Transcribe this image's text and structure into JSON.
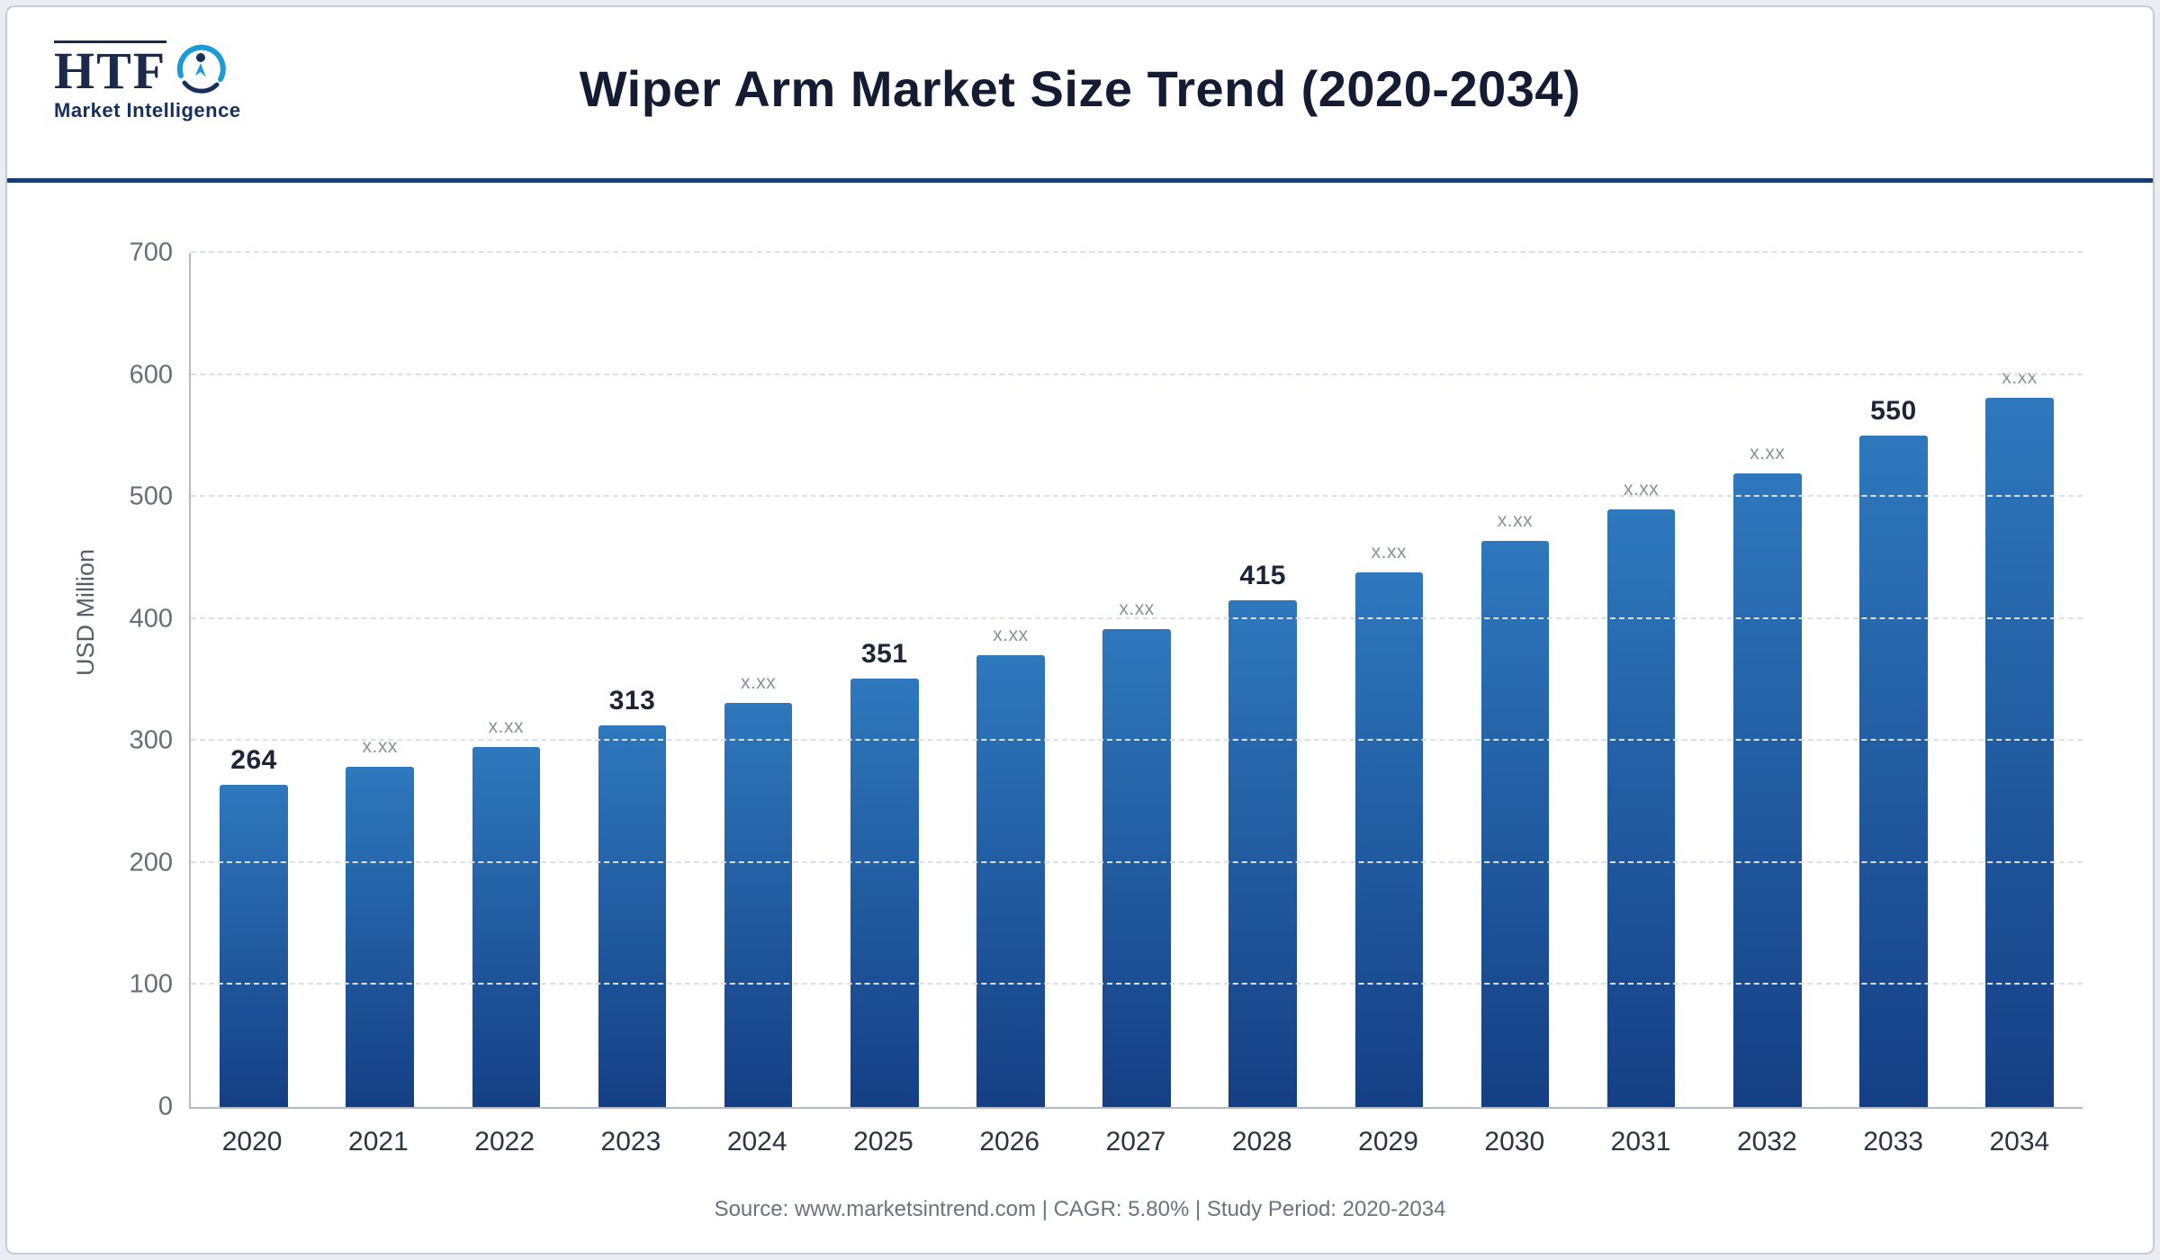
{
  "header": {
    "logo": {
      "acronym": "HTF",
      "subtitle": "Market Intelligence"
    }
  },
  "chart_data": {
    "type": "bar",
    "title": "Wiper Arm Market Size Trend (2020-2034)",
    "categories": [
      "2020",
      "2021",
      "2022",
      "2023",
      "2024",
      "2025",
      "2026",
      "2027",
      "2028",
      "2029",
      "2030",
      "2031",
      "2032",
      "2033",
      "2034"
    ],
    "values": [
      264,
      279,
      295,
      313,
      331,
      351,
      370,
      392,
      415,
      438,
      464,
      490,
      519,
      550,
      581
    ],
    "labels": [
      "264",
      "x.xx",
      "x.xx",
      "313",
      "x.xx",
      "351",
      "x.xx",
      "x.xx",
      "415",
      "x.xx",
      "x.xx",
      "x.xx",
      "x.xx",
      "550",
      "x.xx"
    ],
    "xlabel": "",
    "ylabel": "USD Million",
    "ylim": [
      0,
      700
    ],
    "yticks": [
      0,
      100,
      200,
      300,
      400,
      500,
      600,
      700
    ],
    "grid": true,
    "legend": false,
    "bar_color_top": "#2e78bd",
    "bar_color_bottom": "#153f85",
    "divider_color": "#163d72"
  },
  "footer": {
    "text": "Source: www.marketsintrend.com  |  CAGR: 5.80%  |  Study Period: 2020-2034"
  }
}
